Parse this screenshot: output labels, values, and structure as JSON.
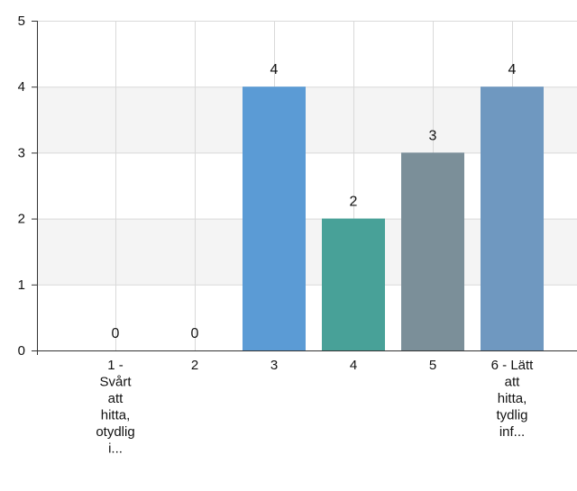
{
  "chart_data": {
    "type": "bar",
    "title": "",
    "xlabel": "",
    "ylabel": "",
    "categories": [
      [
        "1 -",
        "Svårt",
        "att",
        "hitta,",
        "otydlig",
        "i..."
      ],
      [
        "2"
      ],
      [
        "3"
      ],
      [
        "4"
      ],
      [
        "5"
      ],
      [
        "6 - Lätt",
        "att",
        "hitta,",
        "tydlig",
        "inf..."
      ]
    ],
    "values": [
      0,
      0,
      4,
      2,
      3,
      4
    ],
    "data_labels": [
      "0",
      "0",
      "4",
      "2",
      "3",
      "4"
    ],
    "colors": [
      "#5b9bd5",
      "#5b9bd5",
      "#5b9bd5",
      "#48a198",
      "#7b8f99",
      "#6f98c0"
    ],
    "ylim": [
      0,
      5
    ],
    "yticks": [
      "0",
      "1",
      "2",
      "3",
      "4",
      "5"
    ],
    "grid": true,
    "band_color": "#f4f4f4",
    "grid_color": "#d9d9d9"
  }
}
